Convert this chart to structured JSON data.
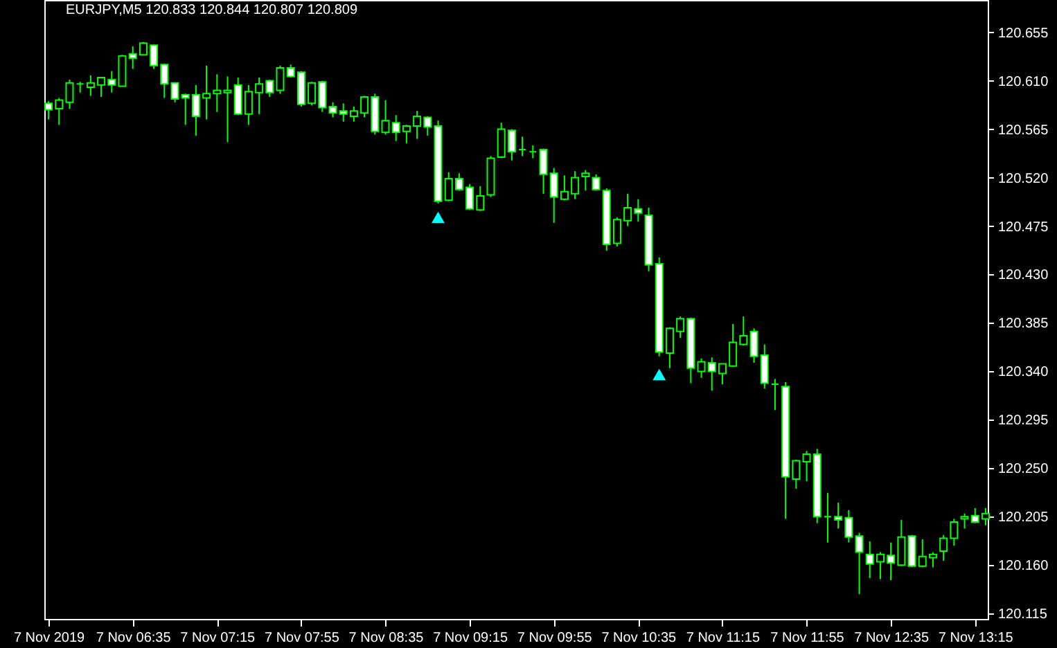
{
  "chart_data": {
    "type": "candlestick",
    "title": "EURJPY,M5  120.833 120.844 120.807 120.809",
    "x": [
      "2019-11-07T05:55",
      "2019-11-07T06:00",
      "2019-11-07T06:05",
      "2019-11-07T06:10",
      "2019-11-07T06:15",
      "2019-11-07T06:20",
      "2019-11-07T06:25",
      "2019-11-07T06:30",
      "2019-11-07T06:35",
      "2019-11-07T06:40",
      "2019-11-07T06:45",
      "2019-11-07T06:50",
      "2019-11-07T06:55",
      "2019-11-07T07:00",
      "2019-11-07T07:05",
      "2019-11-07T07:10",
      "2019-11-07T07:15",
      "2019-11-07T07:20",
      "2019-11-07T07:25",
      "2019-11-07T07:30",
      "2019-11-07T07:35",
      "2019-11-07T07:40",
      "2019-11-07T07:45",
      "2019-11-07T07:50",
      "2019-11-07T07:55",
      "2019-11-07T08:00",
      "2019-11-07T08:05",
      "2019-11-07T08:10",
      "2019-11-07T08:15",
      "2019-11-07T08:20",
      "2019-11-07T08:25",
      "2019-11-07T08:30",
      "2019-11-07T08:35",
      "2019-11-07T08:40",
      "2019-11-07T08:45",
      "2019-11-07T08:50",
      "2019-11-07T08:55",
      "2019-11-07T09:00",
      "2019-11-07T09:05",
      "2019-11-07T09:10",
      "2019-11-07T09:15",
      "2019-11-07T09:20",
      "2019-11-07T09:25",
      "2019-11-07T09:30",
      "2019-11-07T09:35",
      "2019-11-07T09:40",
      "2019-11-07T09:45",
      "2019-11-07T09:50",
      "2019-11-07T09:55",
      "2019-11-07T10:00",
      "2019-11-07T10:05",
      "2019-11-07T10:10",
      "2019-11-07T10:15",
      "2019-11-07T10:20",
      "2019-11-07T10:25",
      "2019-11-07T10:30",
      "2019-11-07T10:35",
      "2019-11-07T10:40",
      "2019-11-07T10:45",
      "2019-11-07T10:50",
      "2019-11-07T10:55",
      "2019-11-07T11:00",
      "2019-11-07T11:05",
      "2019-11-07T11:10",
      "2019-11-07T11:15",
      "2019-11-07T11:20",
      "2019-11-07T11:25",
      "2019-11-07T11:30",
      "2019-11-07T11:35",
      "2019-11-07T11:40",
      "2019-11-07T11:45",
      "2019-11-07T11:50",
      "2019-11-07T11:55",
      "2019-11-07T12:00",
      "2019-11-07T12:05",
      "2019-11-07T12:10",
      "2019-11-07T12:15",
      "2019-11-07T12:20",
      "2019-11-07T12:25",
      "2019-11-07T12:30",
      "2019-11-07T12:35",
      "2019-11-07T12:40",
      "2019-11-07T12:45",
      "2019-11-07T12:50",
      "2019-11-07T12:55",
      "2019-11-07T13:00",
      "2019-11-07T13:05",
      "2019-11-07T13:10",
      "2019-11-07T13:15",
      "2019-11-07T13:20"
    ],
    "ohlc": [
      [
        120.589,
        120.591,
        120.574,
        120.583
      ],
      [
        120.584,
        120.594,
        120.569,
        120.592
      ],
      [
        120.59,
        120.611,
        120.584,
        120.608
      ],
      [
        120.607,
        120.609,
        120.599,
        120.607
      ],
      [
        120.604,
        120.615,
        120.596,
        120.608
      ],
      [
        120.606,
        120.613,
        120.595,
        120.613
      ],
      [
        120.611,
        120.619,
        120.599,
        120.606
      ],
      [
        120.605,
        120.634,
        120.605,
        120.633
      ],
      [
        120.635,
        120.642,
        120.621,
        120.631
      ],
      [
        120.634,
        120.646,
        120.634,
        120.645
      ],
      [
        120.643,
        120.644,
        120.621,
        120.624
      ],
      [
        120.625,
        120.626,
        120.594,
        120.607
      ],
      [
        120.608,
        120.608,
        120.59,
        120.593
      ],
      [
        120.597,
        120.598,
        120.569,
        120.594
      ],
      [
        120.597,
        120.606,
        120.559,
        120.577
      ],
      [
        120.594,
        120.624,
        120.574,
        120.598
      ],
      [
        120.598,
        120.616,
        120.581,
        120.601
      ],
      [
        120.599,
        120.614,
        120.553,
        120.601
      ],
      [
        120.606,
        120.613,
        120.578,
        120.579
      ],
      [
        120.579,
        120.606,
        120.569,
        120.6
      ],
      [
        120.599,
        120.613,
        120.579,
        120.607
      ],
      [
        120.61,
        120.611,
        120.595,
        120.599
      ],
      [
        120.601,
        120.624,
        120.598,
        120.622
      ],
      [
        120.622,
        120.625,
        120.613,
        120.614
      ],
      [
        120.618,
        120.619,
        120.586,
        120.588
      ],
      [
        120.589,
        120.609,
        120.587,
        120.608
      ],
      [
        120.609,
        120.61,
        120.581,
        120.585
      ],
      [
        120.586,
        120.59,
        120.576,
        120.58
      ],
      [
        120.582,
        120.589,
        120.572,
        120.579
      ],
      [
        120.577,
        120.586,
        120.572,
        120.582
      ],
      [
        120.58,
        120.596,
        120.576,
        120.595
      ],
      [
        120.595,
        120.598,
        120.56,
        120.563
      ],
      [
        120.562,
        120.592,
        120.56,
        120.573
      ],
      [
        120.571,
        120.578,
        120.554,
        120.562
      ],
      [
        120.563,
        120.569,
        120.552,
        120.568
      ],
      [
        120.568,
        120.582,
        120.556,
        120.577
      ],
      [
        120.576,
        120.577,
        120.559,
        120.567
      ],
      [
        120.568,
        120.573,
        120.496,
        120.498
      ],
      [
        120.499,
        120.525,
        120.498,
        120.519
      ],
      [
        120.519,
        120.524,
        120.508,
        120.509
      ],
      [
        120.511,
        120.514,
        120.49,
        120.491
      ],
      [
        120.49,
        120.512,
        120.489,
        120.503
      ],
      [
        120.504,
        120.54,
        120.502,
        120.538
      ],
      [
        120.539,
        120.571,
        120.538,
        120.565
      ],
      [
        120.564,
        120.565,
        120.536,
        120.544
      ],
      [
        120.546,
        120.558,
        120.54,
        120.546
      ],
      [
        120.544,
        120.55,
        120.538,
        120.544
      ],
      [
        120.546,
        120.547,
        120.505,
        120.523
      ],
      [
        120.524,
        120.529,
        120.478,
        120.502
      ],
      [
        120.5,
        120.522,
        120.499,
        120.507
      ],
      [
        120.505,
        120.526,
        120.5,
        120.52
      ],
      [
        120.521,
        120.527,
        120.508,
        120.524
      ],
      [
        120.52,
        120.523,
        120.508,
        120.509
      ],
      [
        120.508,
        120.51,
        120.452,
        120.458
      ],
      [
        120.459,
        120.483,
        120.456,
        120.481
      ],
      [
        120.48,
        120.505,
        120.475,
        120.492
      ],
      [
        120.491,
        120.5,
        120.479,
        120.487
      ],
      [
        120.485,
        120.492,
        120.433,
        120.439
      ],
      [
        120.44,
        120.446,
        120.354,
        120.358
      ],
      [
        120.357,
        120.381,
        120.343,
        120.38
      ],
      [
        120.377,
        120.391,
        120.371,
        120.389
      ],
      [
        120.389,
        120.39,
        120.329,
        120.343
      ],
      [
        120.34,
        120.352,
        120.334,
        120.349
      ],
      [
        120.348,
        120.353,
        120.322,
        120.34
      ],
      [
        120.338,
        120.347,
        120.328,
        120.347
      ],
      [
        120.345,
        120.384,
        120.344,
        120.367
      ],
      [
        120.365,
        120.391,
        120.364,
        120.373
      ],
      [
        120.377,
        120.38,
        120.348,
        120.354
      ],
      [
        120.355,
        120.365,
        120.324,
        120.329
      ],
      [
        120.328,
        120.333,
        120.304,
        120.328
      ],
      [
        120.326,
        120.33,
        120.203,
        120.242
      ],
      [
        120.24,
        120.258,
        120.231,
        120.257
      ],
      [
        120.256,
        120.266,
        120.238,
        120.263
      ],
      [
        120.263,
        120.268,
        120.199,
        120.205
      ],
      [
        120.205,
        120.227,
        120.181,
        120.205
      ],
      [
        120.205,
        120.218,
        120.194,
        120.202
      ],
      [
        120.204,
        120.211,
        120.181,
        120.186
      ],
      [
        120.187,
        120.19,
        120.133,
        120.172
      ],
      [
        120.17,
        120.182,
        120.148,
        120.161
      ],
      [
        120.163,
        120.172,
        120.147,
        120.17
      ],
      [
        120.169,
        120.181,
        120.146,
        120.162
      ],
      [
        120.16,
        120.202,
        120.159,
        120.186
      ],
      [
        120.187,
        120.188,
        120.158,
        120.159
      ],
      [
        120.159,
        120.184,
        120.158,
        120.168
      ],
      [
        120.167,
        120.172,
        120.158,
        120.17
      ],
      [
        120.173,
        120.188,
        120.164,
        120.185
      ],
      [
        120.185,
        120.203,
        120.178,
        120.2
      ],
      [
        120.203,
        120.208,
        120.194,
        120.205
      ],
      [
        120.206,
        120.213,
        120.199,
        120.2
      ],
      [
        120.203,
        120.213,
        120.197,
        120.208
      ]
    ],
    "series": [
      {
        "type": "scatter",
        "color": "#00ffff",
        "x": [
          "2019-11-07T09:00",
          "2019-11-07T10:45"
        ],
        "values": [
          120.483,
          120.337
        ]
      }
    ],
    "marker": "triangle",
    "xlim": [
      "2019-11-07T05:53",
      "2019-11-07T13:21"
    ],
    "xticks": [
      {
        "value": "2019-11-07T05:55",
        "label": "7 Nov 2019"
      },
      {
        "value": "2019-11-07T06:35",
        "label": "7 Nov 06:35"
      },
      {
        "value": "2019-11-07T07:15",
        "label": "7 Nov 07:15"
      },
      {
        "value": "2019-11-07T07:55",
        "label": "7 Nov 07:55"
      },
      {
        "value": "2019-11-07T08:35",
        "label": "7 Nov 08:35"
      },
      {
        "value": "2019-11-07T09:15",
        "label": "7 Nov 09:15"
      },
      {
        "value": "2019-11-07T09:55",
        "label": "7 Nov 09:55"
      },
      {
        "value": "2019-11-07T10:35",
        "label": "7 Nov 10:35"
      },
      {
        "value": "2019-11-07T11:15",
        "label": "7 Nov 11:15"
      },
      {
        "value": "2019-11-07T11:55",
        "label": "7 Nov 11:55"
      },
      {
        "value": "2019-11-07T12:35",
        "label": "7 Nov 12:35"
      },
      {
        "value": "2019-11-07T13:15",
        "label": "7 Nov 13:15"
      }
    ],
    "ylim": [
      120.11,
      120.685
    ],
    "yticks": [
      120.115,
      {
        "value": 120.16,
        "label": "120.160"
      },
      120.205,
      {
        "value": 120.25,
        "label": "120.250"
      },
      120.295,
      {
        "value": 120.34,
        "label": "120.340"
      },
      120.385,
      {
        "value": 120.43,
        "label": "120.430"
      },
      120.475,
      {
        "value": 120.52,
        "label": "120.520"
      },
      120.565,
      {
        "value": 120.61,
        "label": "120.610"
      },
      120.655
    ],
    "grid": false
  }
}
